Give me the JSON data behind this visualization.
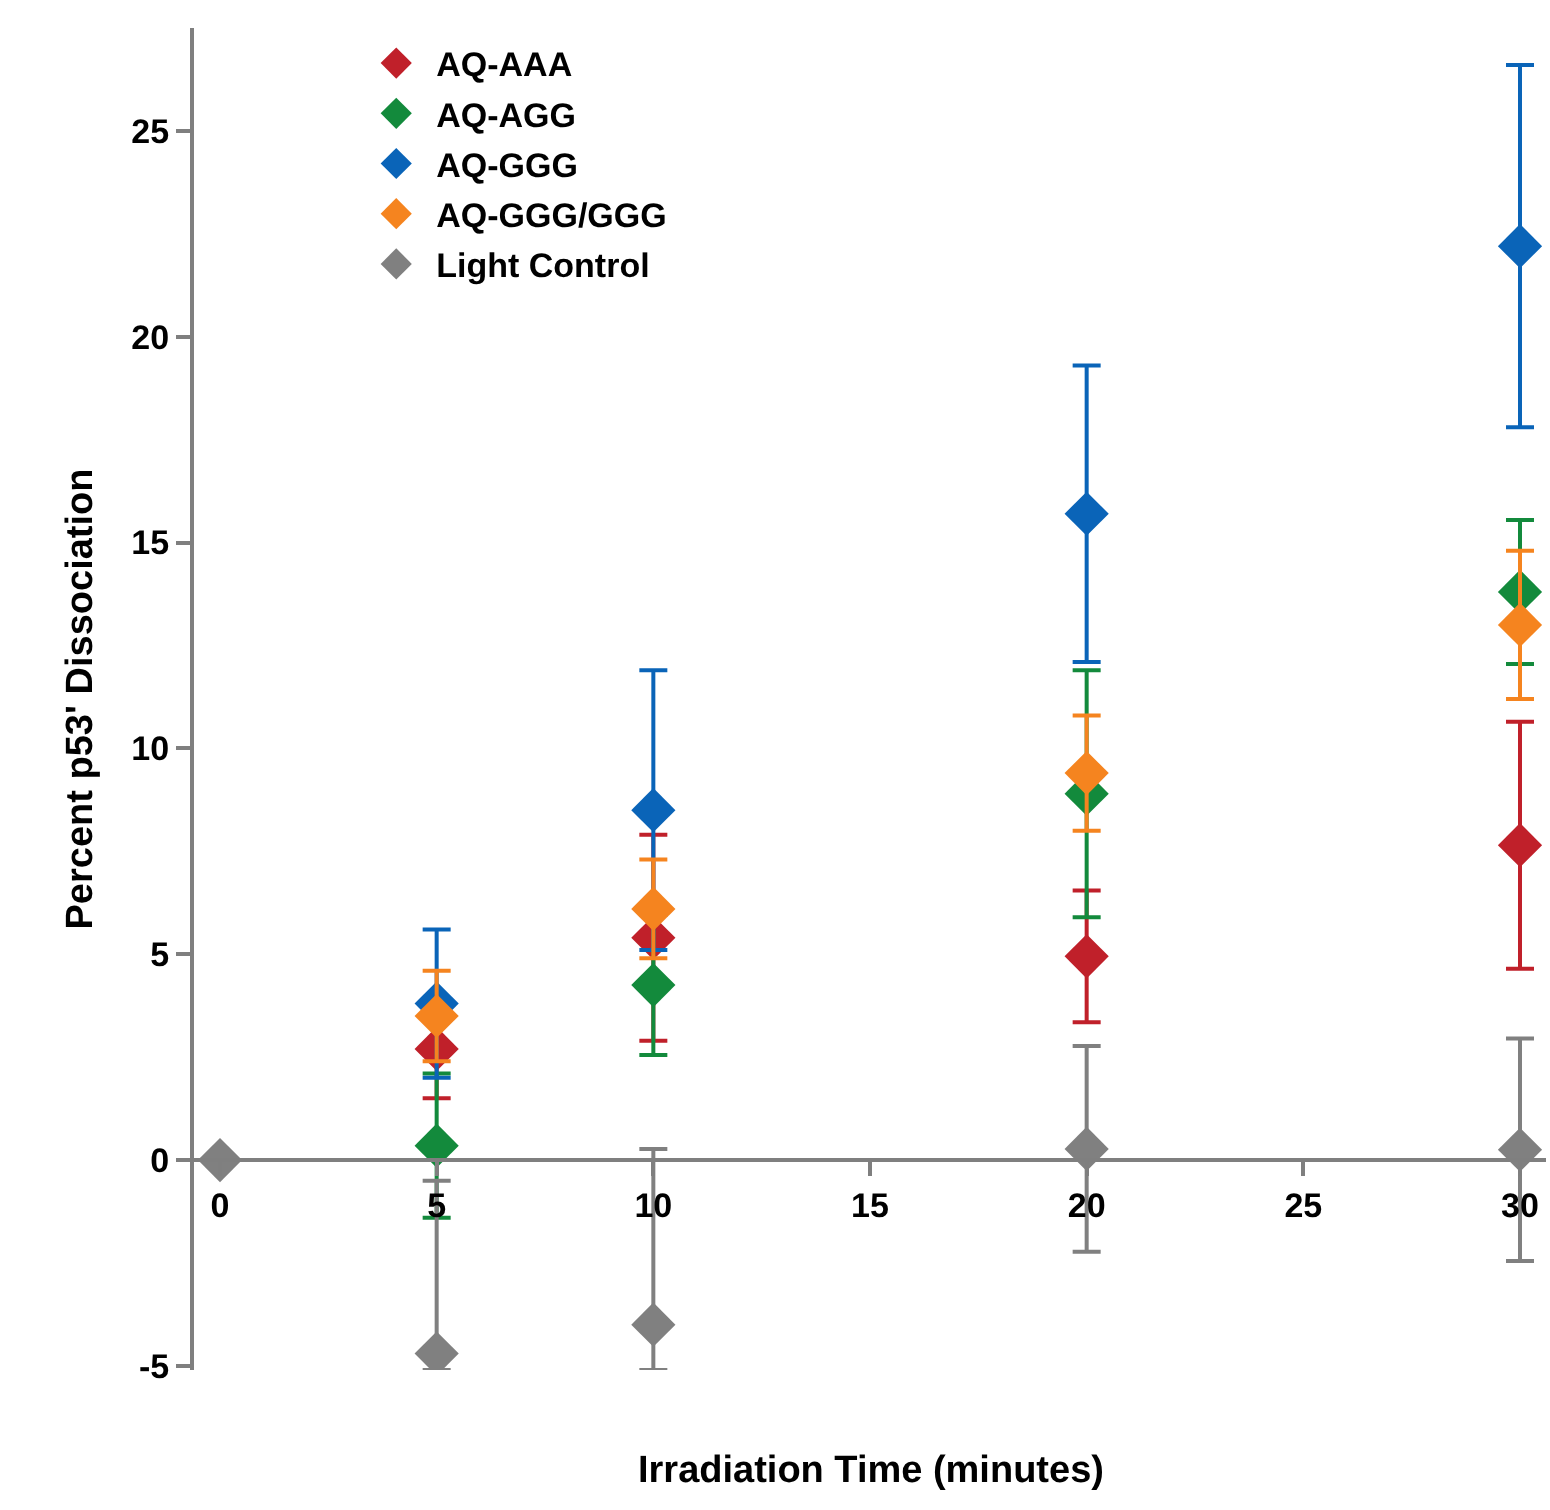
{
  "chart_data": {
    "type": "scatter",
    "xlabel": "Irradiation Time (minutes)",
    "ylabel": "Percent p53' Dissociation",
    "marker": "diamond",
    "legend": "top left",
    "grid": false,
    "xlim": [
      -0.6,
      30.6
    ],
    "xticks": [
      0,
      5,
      10,
      15,
      20,
      25,
      30
    ],
    "ylim": [
      -5.1,
      27.5
    ],
    "yticks": [
      -5,
      0,
      5,
      10,
      15,
      20,
      25
    ],
    "series": [
      {
        "name": "AQ-AAA",
        "color": "#c0202a",
        "x": [
          5,
          10,
          20,
          30
        ],
        "values": [
          2.7,
          5.4,
          4.95,
          7.65
        ],
        "errors": [
          1.2,
          2.5,
          1.6,
          3.0
        ]
      },
      {
        "name": "AQ-AGG",
        "color": "#138a3c",
        "x": [
          5,
          10,
          20,
          30
        ],
        "values": [
          0.35,
          4.25,
          8.9,
          13.8
        ],
        "errors": [
          1.75,
          1.7,
          3.0,
          1.75
        ]
      },
      {
        "name": "AQ-GGG",
        "color": "#0a64b8",
        "x": [
          5,
          10,
          20,
          30
        ],
        "values": [
          3.8,
          8.5,
          15.7,
          22.2
        ],
        "errors": [
          1.8,
          3.4,
          3.6,
          4.4
        ]
      },
      {
        "name": "AQ-GGG/GGG",
        "color": "#f5841f",
        "x": [
          5,
          10,
          20,
          30
        ],
        "values": [
          3.5,
          6.1,
          9.4,
          13.0
        ],
        "errors": [
          1.1,
          1.2,
          1.4,
          1.8
        ]
      },
      {
        "name": "Light Control",
        "color": "#808080",
        "x": [
          0,
          5,
          10,
          20,
          30
        ],
        "values": [
          0,
          -4.7,
          -4.0,
          0.27,
          0.25
        ],
        "errors": [
          null,
          [
            -5.1,
            -0.5
          ],
          [
            -5.1,
            0.27
          ],
          2.5,
          2.7
        ]
      }
    ]
  }
}
